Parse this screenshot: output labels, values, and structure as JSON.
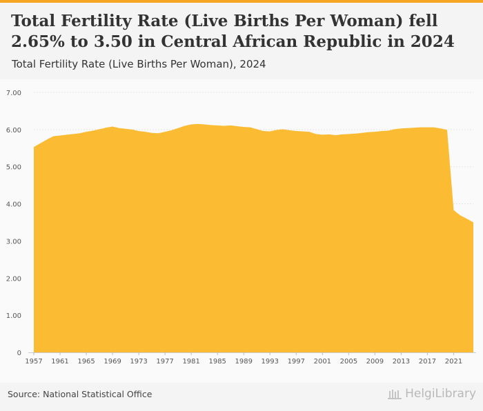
{
  "title": "Total Fertility Rate (Live Births Per Woman) fell 2.65% to 3.50 in Central African Republic in 2024",
  "subtitle": "Total Fertility Rate (Live Births Per Woman), 2024",
  "source": "Source: National Statistical Office",
  "brand": "HelgiLibrary",
  "colors": {
    "area": "#fbbb33",
    "accent": "#f5a623",
    "grid": "#e4e4e4",
    "text": "#333333"
  },
  "chart_data": {
    "type": "area",
    "ylim": [
      0,
      7
    ],
    "y_ticks": [
      "0",
      "1.00",
      "2.00",
      "3.00",
      "4.00",
      "5.00",
      "6.00",
      "7.00"
    ],
    "x_ticks": [
      "1957",
      "1961",
      "1965",
      "1969",
      "1973",
      "1977",
      "1981",
      "1985",
      "1989",
      "1993",
      "1997",
      "2001",
      "2005",
      "2009",
      "2013",
      "2017",
      "2021"
    ],
    "grid": true,
    "x": [
      1957,
      1958,
      1959,
      1960,
      1961,
      1962,
      1963,
      1964,
      1965,
      1966,
      1967,
      1968,
      1969,
      1970,
      1971,
      1972,
      1973,
      1974,
      1975,
      1976,
      1977,
      1978,
      1979,
      1980,
      1981,
      1982,
      1983,
      1984,
      1985,
      1986,
      1987,
      1988,
      1989,
      1990,
      1991,
      1992,
      1993,
      1994,
      1995,
      1996,
      1997,
      1998,
      1999,
      2000,
      2001,
      2002,
      2003,
      2004,
      2005,
      2006,
      2007,
      2008,
      2009,
      2010,
      2011,
      2012,
      2013,
      2014,
      2015,
      2016,
      2017,
      2018,
      2019,
      2020,
      2021,
      2022,
      2023,
      2024
    ],
    "values": [
      5.53,
      5.63,
      5.73,
      5.82,
      5.84,
      5.86,
      5.88,
      5.9,
      5.94,
      5.97,
      6.01,
      6.05,
      6.08,
      6.04,
      6.02,
      6.0,
      5.96,
      5.94,
      5.91,
      5.9,
      5.94,
      5.98,
      6.04,
      6.1,
      6.14,
      6.15,
      6.14,
      6.12,
      6.11,
      6.1,
      6.11,
      6.09,
      6.07,
      6.06,
      6.01,
      5.96,
      5.95,
      5.99,
      6.01,
      5.98,
      5.96,
      5.95,
      5.94,
      5.88,
      5.86,
      5.87,
      5.85,
      5.87,
      5.88,
      5.89,
      5.91,
      5.93,
      5.94,
      5.96,
      5.97,
      6.01,
      6.03,
      6.04,
      6.05,
      6.06,
      6.06,
      6.06,
      6.03,
      5.99,
      3.83,
      3.69,
      3.6,
      3.5
    ]
  }
}
